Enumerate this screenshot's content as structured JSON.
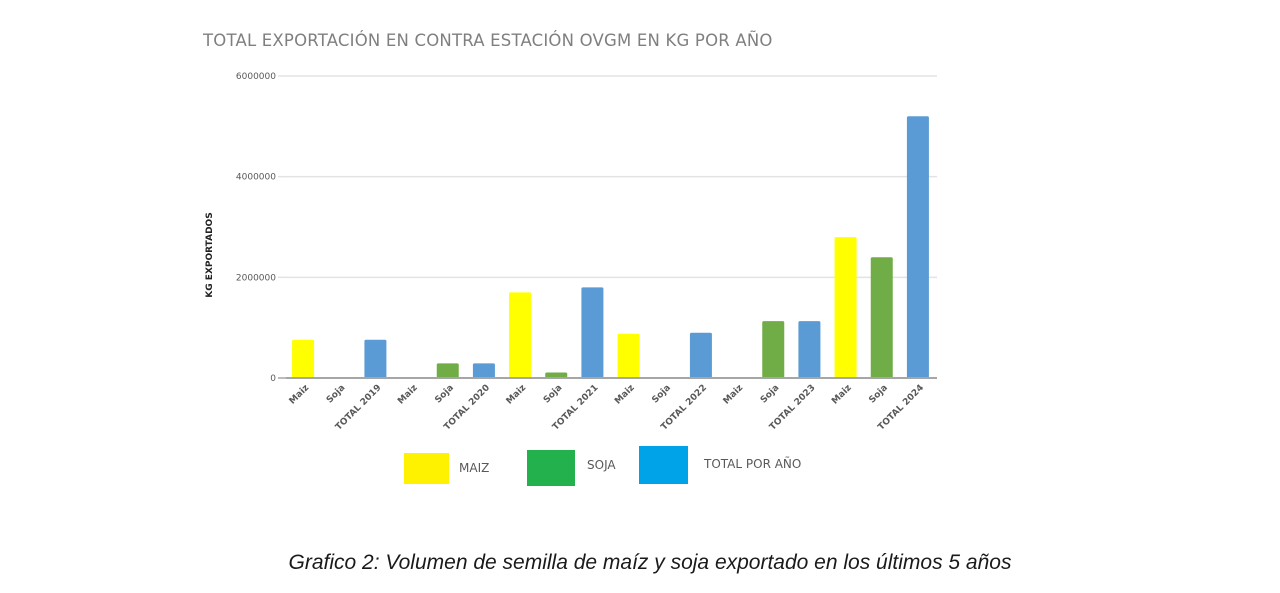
{
  "chart_data": {
    "type": "bar",
    "title": "TOTAL EXPORTACIÓN EN CONTRA ESTACIÓN OVGM EN KG POR AÑO",
    "xlabel": "",
    "ylabel": "KG EXPORTADOS",
    "ylim": [
      0,
      6000000
    ],
    "yticks": [
      0,
      2000000,
      4000000,
      6000000
    ],
    "ytick_labels": [
      "0",
      "2000000",
      "4000000",
      "6000000"
    ],
    "grid": true,
    "categories": [
      "Maiz",
      "Soja",
      "TOTAL 2019",
      "Maiz",
      "Soja",
      "TOTAL 2020",
      "Maiz",
      "Soja",
      "TOTAL 2021",
      "Maiz",
      "Soja",
      "TOTAL 2022",
      "Maiz",
      "Soja",
      "TOTAL 2023",
      "Maiz",
      "Soja",
      "TOTAL 2024"
    ],
    "values": [
      760000,
      0,
      760000,
      0,
      290000,
      290000,
      1700000,
      110000,
      1800000,
      880000,
      20000,
      900000,
      20000,
      1130000,
      1130000,
      2800000,
      2400000,
      5200000
    ],
    "bar_series": [
      "maiz",
      "soja",
      "total",
      "maiz",
      "soja",
      "total",
      "maiz",
      "soja",
      "total",
      "maiz",
      "soja",
      "total",
      "maiz",
      "soja",
      "total",
      "maiz",
      "soja",
      "total"
    ],
    "series_colors": {
      "maiz": "#FFFF00",
      "soja": "#70AD47",
      "total": "#5B9BD5"
    },
    "legend": {
      "placement": "bottom",
      "entries": [
        {
          "key": "maiz",
          "label": "MAIZ",
          "color": "#FFF200"
        },
        {
          "key": "soja",
          "label": "SOJA",
          "color": "#22B14C"
        },
        {
          "key": "total",
          "label": "TOTAL POR AÑO",
          "color": "#00A2E8"
        }
      ]
    }
  },
  "caption": "Grafico 2: Volumen de semilla de maíz y soja exportado en los últimos 5 años"
}
